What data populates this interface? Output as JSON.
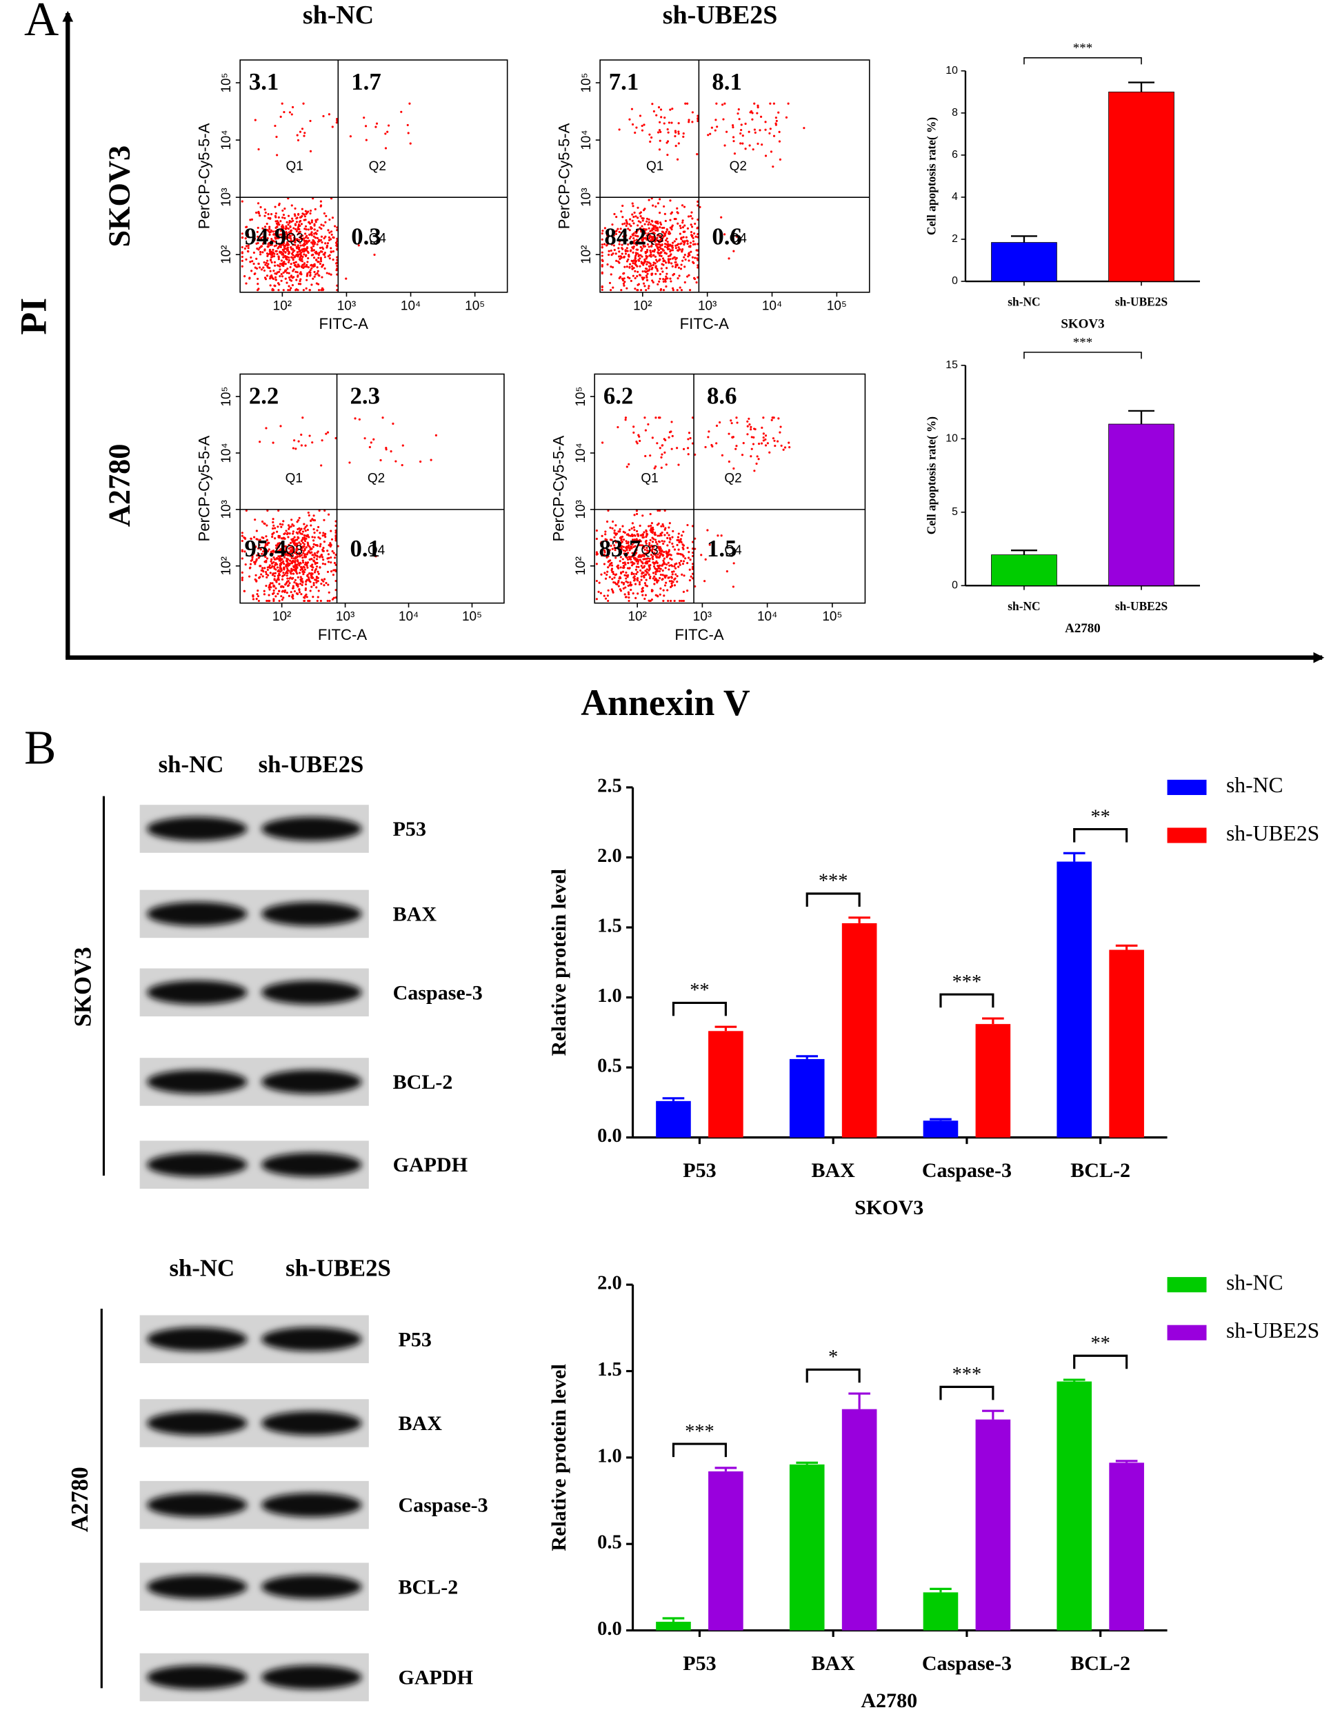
{
  "panel_a": {
    "label": "A",
    "y_axis": "PI",
    "x_axis": "Annexin V",
    "columns": [
      "sh-NC",
      "sh-UBE2S"
    ],
    "rows": [
      "SKOV3",
      "A2780"
    ]
  },
  "panel_b": {
    "label": "B",
    "blots": [
      {
        "cell_line": "SKOV3",
        "columns": [
          "sh-NC",
          "sh-UBE2S"
        ],
        "proteins": [
          "P53",
          "BAX",
          "Caspase-3",
          "BCL-2",
          "GAPDH"
        ]
      },
      {
        "cell_line": "A2780",
        "columns": [
          "sh-NC",
          "sh-UBE2S"
        ],
        "proteins": [
          "P53",
          "BAX",
          "Caspase-3",
          "BCL-2",
          "GAPDH"
        ]
      }
    ]
  },
  "chart_data": [
    {
      "type": "flow",
      "x_label": "FITC-A",
      "y_label": "PerCP-Cy5-5-A",
      "log_scale": true,
      "xlim": [
        22,
        320000
      ],
      "ylim": [
        22,
        250000
      ],
      "gate": [
        740,
        1000
      ],
      "quadrant_names": [
        "Q1",
        "Q2",
        "Q3",
        "Q4"
      ],
      "quadrant_values": [
        3.1,
        1.7,
        94.9,
        0.3
      ],
      "xticks": [
        {
          "value": 100,
          "label": "10²"
        },
        {
          "value": 1000,
          "label": "10³"
        },
        {
          "value": 10000,
          "label": "10⁴"
        },
        {
          "value": 100000,
          "label": "10⁵"
        }
      ],
      "yticks": [
        {
          "value": 100,
          "label": "10²"
        },
        {
          "value": 1000,
          "label": "10³"
        },
        {
          "value": 10000,
          "label": "10⁴"
        },
        {
          "value": 100000,
          "label": "10⁵"
        }
      ],
      "color": "#ff0000"
    },
    {
      "type": "flow",
      "x_label": "FITC-A",
      "y_label": "PerCP-Cy5-5-A",
      "log_scale": true,
      "xlim": [
        22,
        320000
      ],
      "ylim": [
        22,
        250000
      ],
      "gate": [
        740,
        1000
      ],
      "quadrant_names": [
        "Q1",
        "Q2",
        "Q3",
        "Q4"
      ],
      "quadrant_values": [
        7.1,
        8.1,
        84.2,
        0.6
      ],
      "xticks": [
        {
          "value": 100,
          "label": "10²"
        },
        {
          "value": 1000,
          "label": "10³"
        },
        {
          "value": 10000,
          "label": "10⁴"
        },
        {
          "value": 100000,
          "label": "10⁵"
        }
      ],
      "yticks": [
        {
          "value": 100,
          "label": "10²"
        },
        {
          "value": 1000,
          "label": "10³"
        },
        {
          "value": 10000,
          "label": "10⁴"
        },
        {
          "value": 100000,
          "label": "10⁵"
        }
      ],
      "color": "#ff0000"
    },
    {
      "type": "flow",
      "x_label": "FITC-A",
      "y_label": "PerCP-Cy5-5-A",
      "log_scale": true,
      "xlim": [
        22,
        320000
      ],
      "ylim": [
        22,
        250000
      ],
      "gate": [
        740,
        1000
      ],
      "quadrant_names": [
        "Q1",
        "Q2",
        "Q3",
        "Q4"
      ],
      "quadrant_values": [
        2.2,
        2.3,
        95.4,
        0.1
      ],
      "xticks": [
        {
          "value": 100,
          "label": "10²"
        },
        {
          "value": 1000,
          "label": "10³"
        },
        {
          "value": 10000,
          "label": "10⁴"
        },
        {
          "value": 100000,
          "label": "10⁵"
        }
      ],
      "yticks": [
        {
          "value": 100,
          "label": "10²"
        },
        {
          "value": 1000,
          "label": "10³"
        },
        {
          "value": 10000,
          "label": "10⁴"
        },
        {
          "value": 100000,
          "label": "10⁵"
        }
      ],
      "color": "#ff0000"
    },
    {
      "type": "flow",
      "x_label": "FITC-A",
      "y_label": "PerCP-Cy5-5-A",
      "log_scale": true,
      "xlim": [
        22,
        320000
      ],
      "ylim": [
        22,
        250000
      ],
      "gate": [
        740,
        1000
      ],
      "quadrant_names": [
        "Q1",
        "Q2",
        "Q3",
        "Q4"
      ],
      "quadrant_values": [
        6.2,
        8.6,
        83.7,
        1.5
      ],
      "xticks": [
        {
          "value": 100,
          "label": "10²"
        },
        {
          "value": 1000,
          "label": "10³"
        },
        {
          "value": 10000,
          "label": "10⁴"
        },
        {
          "value": 100000,
          "label": "10⁵"
        }
      ],
      "yticks": [
        {
          "value": 100,
          "label": "10²"
        },
        {
          "value": 1000,
          "label": "10³"
        },
        {
          "value": 10000,
          "label": "10⁴"
        },
        {
          "value": 100000,
          "label": "10⁵"
        }
      ],
      "color": "#ff0000"
    },
    {
      "type": "bar",
      "y_label": "Cell apoptosis rate( %)",
      "x_label": "SKOV3",
      "categories": [
        "sh-NC",
        "sh-UBE2S"
      ],
      "values": [
        1.85,
        9.0
      ],
      "errors": [
        0.3,
        0.45
      ],
      "colors": [
        "#0000ff",
        "#ff0000"
      ],
      "significance": "***",
      "ylim": [
        0,
        10
      ],
      "yticks": [
        0,
        2,
        4,
        6,
        8,
        10
      ]
    },
    {
      "type": "bar",
      "y_label": "Cell apoptosis rate( %)",
      "x_label": "A2780",
      "categories": [
        "sh-NC",
        "sh-UBE2S"
      ],
      "values": [
        2.1,
        11.0
      ],
      "errors": [
        0.3,
        0.9
      ],
      "colors": [
        "#00cc00",
        "#9900dd"
      ],
      "significance": "***",
      "ylim": [
        0,
        15
      ],
      "yticks": [
        0,
        5,
        10,
        15
      ]
    },
    {
      "type": "grouped_bar",
      "y_label": "Relative protein level",
      "x_label": "SKOV3",
      "legend": "upper-right",
      "categories": [
        "P53",
        "BAX",
        "Caspase-3",
        "BCL-2"
      ],
      "series": [
        {
          "name": "sh-NC",
          "color": "#0000ff",
          "values": [
            0.26,
            0.56,
            0.12,
            1.97
          ],
          "errors": [
            0.02,
            0.02,
            0.01,
            0.06
          ]
        },
        {
          "name": "sh-UBE2S",
          "color": "#ff0000",
          "values": [
            0.76,
            1.53,
            0.81,
            1.34
          ],
          "errors": [
            0.03,
            0.04,
            0.04,
            0.03
          ]
        }
      ],
      "significance": [
        "**",
        "***",
        "***",
        "**"
      ],
      "ylim": [
        0,
        2.5
      ],
      "yticks": [
        {
          "value": 0,
          "label": "0.0"
        },
        0.5,
        {
          "value": 1,
          "label": "1.0"
        },
        1.5,
        {
          "value": 2,
          "label": "2.0"
        },
        2.5
      ]
    },
    {
      "type": "grouped_bar",
      "y_label": "Relative protein level",
      "x_label": "A2780",
      "legend": "upper-right",
      "categories": [
        "P53",
        "BAX",
        "Caspase-3",
        "BCL-2"
      ],
      "series": [
        {
          "name": "sh-NC",
          "color": "#00cc00",
          "values": [
            0.05,
            0.96,
            0.22,
            1.44
          ],
          "errors": [
            0.02,
            0.01,
            0.02,
            0.01
          ]
        },
        {
          "name": "sh-UBE2S",
          "color": "#9900dd",
          "values": [
            0.92,
            1.28,
            1.22,
            0.97
          ],
          "errors": [
            0.02,
            0.09,
            0.05,
            0.01
          ]
        }
      ],
      "significance": [
        "***",
        "*",
        "***",
        "**"
      ],
      "ylim": [
        0,
        2.0
      ],
      "yticks": [
        {
          "value": 0,
          "label": "0.0"
        },
        0.5,
        {
          "value": 1,
          "label": "1.0"
        },
        1.5,
        {
          "value": 2,
          "label": "2.0"
        }
      ]
    }
  ]
}
